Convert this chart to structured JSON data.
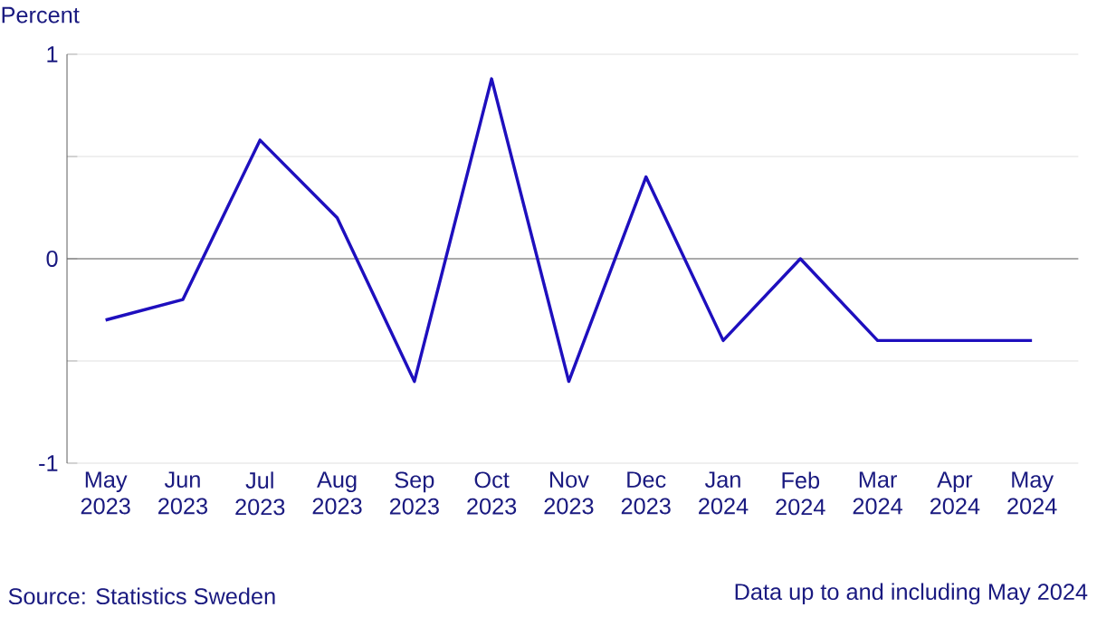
{
  "chart_data": {
    "type": "line",
    "ylabel": "Percent",
    "categories": [
      "May 2023",
      "Jun 2023",
      "Jul 2023",
      "Aug 2023",
      "Sep 2023",
      "Oct 2023",
      "Nov 2023",
      "Dec 2023",
      "Jan 2024",
      "Feb 2024",
      "Mar 2024",
      "Apr 2024",
      "May 2024"
    ],
    "series": [
      {
        "color": "#1e0fbe",
        "values": [
          -0.3,
          -0.2,
          0.58,
          0.2,
          -0.6,
          0.88,
          -0.6,
          0.4,
          -0.4,
          0,
          -0.4,
          -0.4,
          -0.4
        ]
      }
    ],
    "ylim": [
      -1,
      1
    ],
    "yticks": [
      -1,
      {
        "value": -0.5,
        "label": null
      },
      0,
      {
        "value": 0.5,
        "label": null
      },
      1
    ],
    "grid": "y",
    "marker": "none",
    "line_style": "solid",
    "annotations": [
      "Source: Statistics Sweden",
      "Data up to and including May 2024"
    ]
  }
}
